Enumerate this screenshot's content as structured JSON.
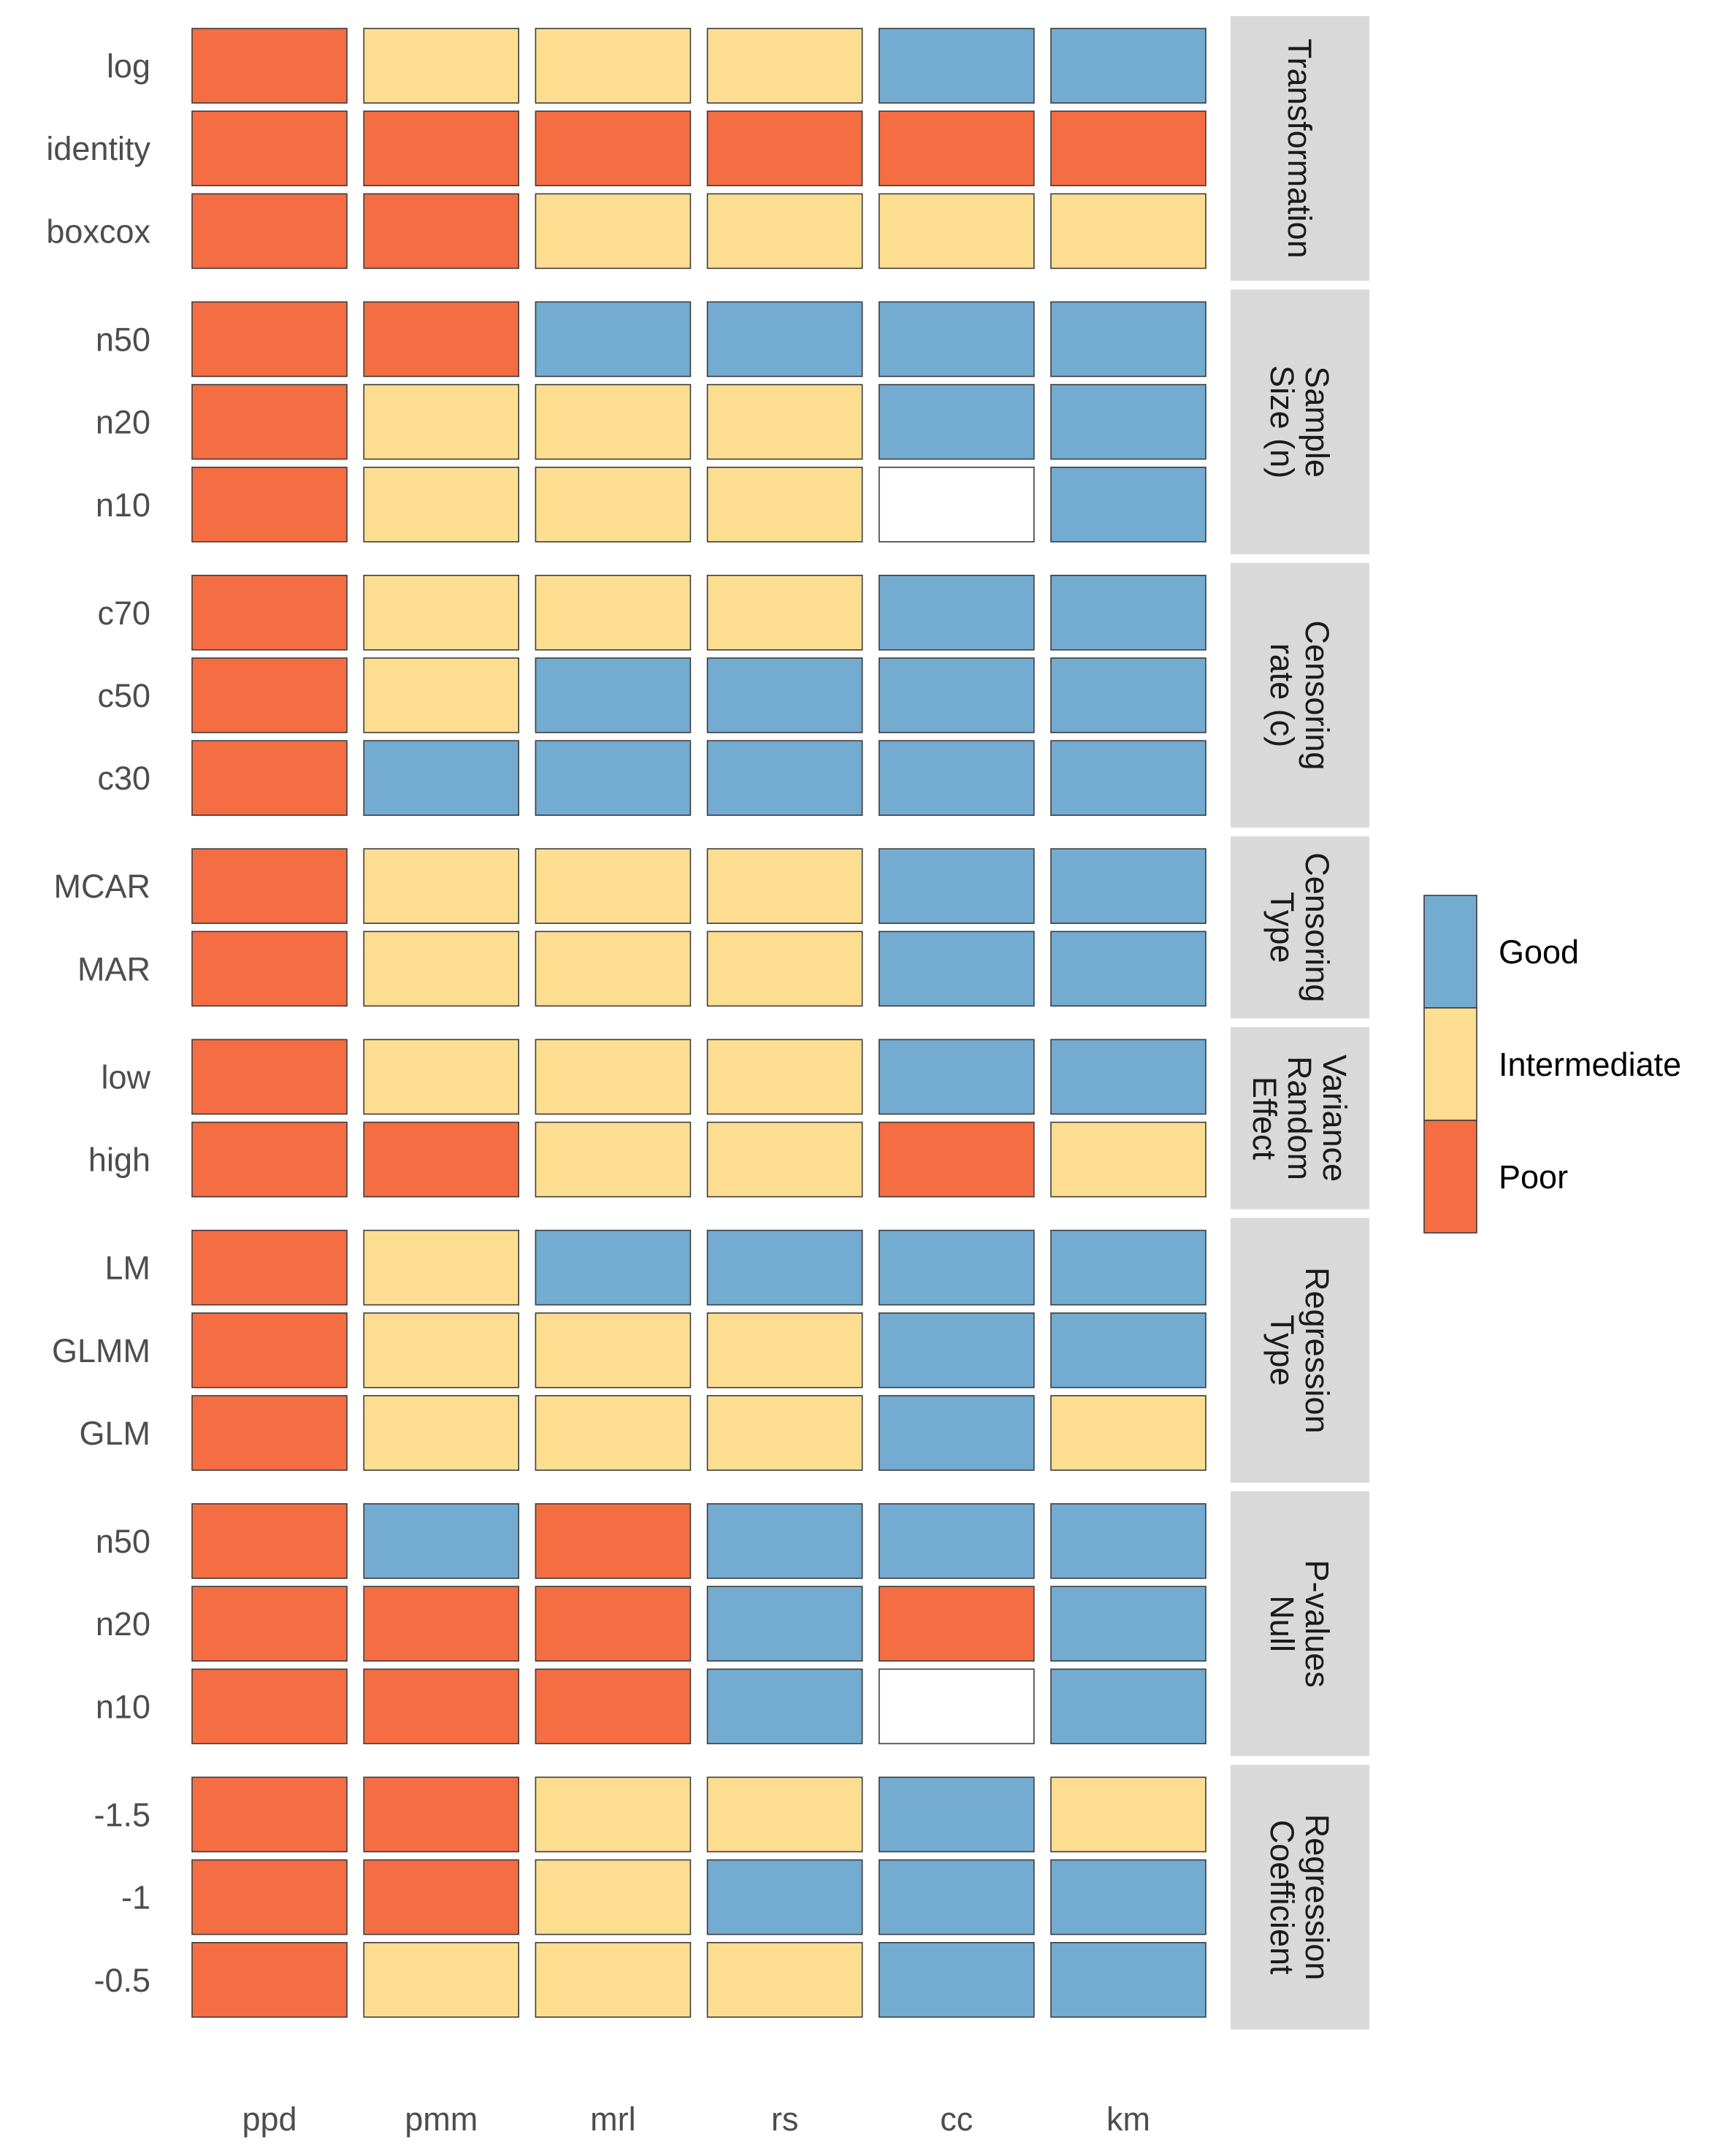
{
  "chart_data": {
    "type": "heatmap",
    "columns": [
      "ppd",
      "pmm",
      "mrl",
      "rs",
      "cc",
      "km"
    ],
    "colors": {
      "Good": "#74abd1",
      "Intermediate": "#fdde91",
      "Poor": "#f46d43",
      "none": "#ffffff"
    },
    "legend": {
      "placement": "right",
      "entries": [
        "Good",
        "Intermediate",
        "Poor"
      ]
    },
    "panels": [
      {
        "strip": [
          "Transformation"
        ],
        "rows": [
          {
            "label": "log",
            "values": [
              "Poor",
              "Intermediate",
              "Intermediate",
              "Intermediate",
              "Good",
              "Good"
            ]
          },
          {
            "label": "identity",
            "values": [
              "Poor",
              "Poor",
              "Poor",
              "Poor",
              "Poor",
              "Poor"
            ]
          },
          {
            "label": "boxcox",
            "values": [
              "Poor",
              "Poor",
              "Intermediate",
              "Intermediate",
              "Intermediate",
              "Intermediate"
            ]
          }
        ]
      },
      {
        "strip": [
          "Sample",
          "Size (n)"
        ],
        "rows": [
          {
            "label": "n50",
            "values": [
              "Poor",
              "Poor",
              "Good",
              "Good",
              "Good",
              "Good"
            ]
          },
          {
            "label": "n20",
            "values": [
              "Poor",
              "Intermediate",
              "Intermediate",
              "Intermediate",
              "Good",
              "Good"
            ]
          },
          {
            "label": "n10",
            "values": [
              "Poor",
              "Intermediate",
              "Intermediate",
              "Intermediate",
              "none",
              "Good"
            ]
          }
        ]
      },
      {
        "strip": [
          "Censoring",
          "rate (c)"
        ],
        "rows": [
          {
            "label": "c70",
            "values": [
              "Poor",
              "Intermediate",
              "Intermediate",
              "Intermediate",
              "Good",
              "Good"
            ]
          },
          {
            "label": "c50",
            "values": [
              "Poor",
              "Intermediate",
              "Good",
              "Good",
              "Good",
              "Good"
            ]
          },
          {
            "label": "c30",
            "values": [
              "Poor",
              "Good",
              "Good",
              "Good",
              "Good",
              "Good"
            ]
          }
        ]
      },
      {
        "strip": [
          "Censoring",
          "Type"
        ],
        "rows": [
          {
            "label": "MCAR",
            "values": [
              "Poor",
              "Intermediate",
              "Intermediate",
              "Intermediate",
              "Good",
              "Good"
            ]
          },
          {
            "label": "MAR",
            "values": [
              "Poor",
              "Intermediate",
              "Intermediate",
              "Intermediate",
              "Good",
              "Good"
            ]
          }
        ]
      },
      {
        "strip": [
          "Variance",
          "Random",
          "Effect"
        ],
        "rows": [
          {
            "label": "low",
            "values": [
              "Poor",
              "Intermediate",
              "Intermediate",
              "Intermediate",
              "Good",
              "Good"
            ]
          },
          {
            "label": "high",
            "values": [
              "Poor",
              "Poor",
              "Intermediate",
              "Intermediate",
              "Poor",
              "Intermediate"
            ]
          }
        ]
      },
      {
        "strip": [
          "Regression",
          "Type"
        ],
        "rows": [
          {
            "label": "LM",
            "values": [
              "Poor",
              "Intermediate",
              "Good",
              "Good",
              "Good",
              "Good"
            ]
          },
          {
            "label": "GLMM",
            "values": [
              "Poor",
              "Intermediate",
              "Intermediate",
              "Intermediate",
              "Good",
              "Good"
            ]
          },
          {
            "label": "GLM",
            "values": [
              "Poor",
              "Intermediate",
              "Intermediate",
              "Intermediate",
              "Good",
              "Intermediate"
            ]
          }
        ]
      },
      {
        "strip": [
          "P-values",
          "Null"
        ],
        "rows": [
          {
            "label": "n50",
            "values": [
              "Poor",
              "Good",
              "Poor",
              "Good",
              "Good",
              "Good"
            ]
          },
          {
            "label": "n20",
            "values": [
              "Poor",
              "Poor",
              "Poor",
              "Good",
              "Poor",
              "Good"
            ]
          },
          {
            "label": "n10",
            "values": [
              "Poor",
              "Poor",
              "Poor",
              "Good",
              "none",
              "Good"
            ]
          }
        ]
      },
      {
        "strip": [
          "Regression",
          "Coefficient"
        ],
        "rows": [
          {
            "label": "-1.5",
            "values": [
              "Poor",
              "Poor",
              "Intermediate",
              "Intermediate",
              "Good",
              "Intermediate"
            ]
          },
          {
            "label": "-1",
            "values": [
              "Poor",
              "Poor",
              "Intermediate",
              "Good",
              "Good",
              "Good"
            ]
          },
          {
            "label": "-0.5",
            "values": [
              "Poor",
              "Intermediate",
              "Intermediate",
              "Intermediate",
              "Good",
              "Good"
            ]
          }
        ]
      }
    ]
  }
}
